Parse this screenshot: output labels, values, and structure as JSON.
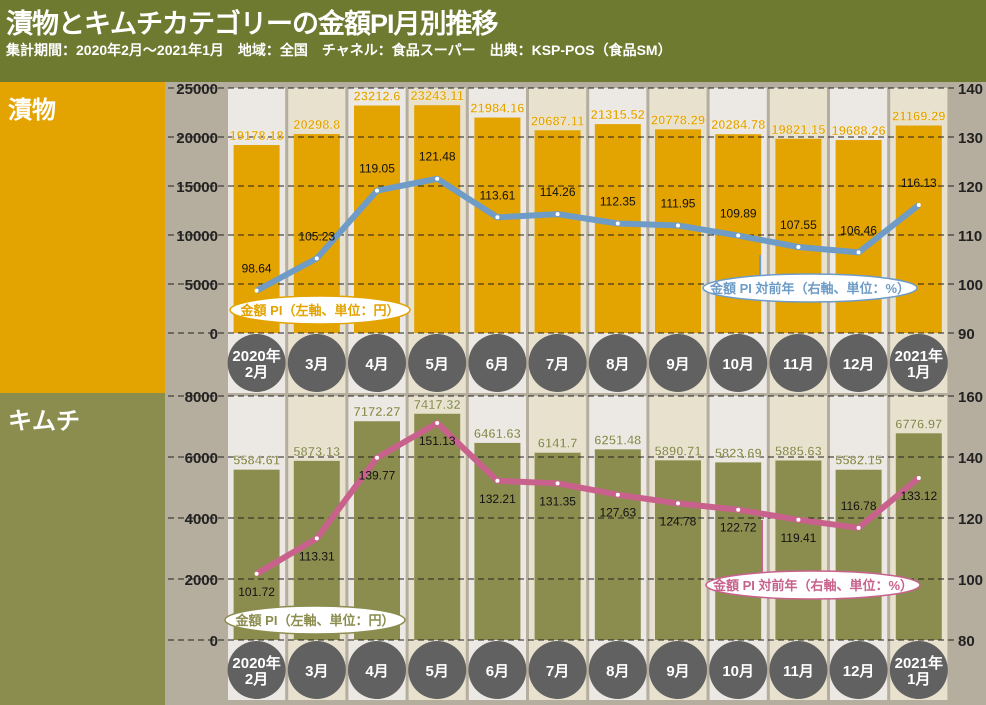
{
  "title": "漬物とキムチカテゴリーの金額PI月別推移",
  "subtitle": "集計期間：2020年2月～2021年1月　地域：全国　チャネル：食品スーパー　出典：KSP-POS（食品SM）",
  "chart_data": [
    {
      "section": "漬物",
      "type": "bar+line",
      "categories": [
        "2020年\n2月",
        "3月",
        "4月",
        "5月",
        "6月",
        "7月",
        "8月",
        "9月",
        "10月",
        "11月",
        "12月",
        "2021年\n1月"
      ],
      "series": [
        {
          "name": "金額 PI（左軸、単位：円）",
          "type": "bar",
          "axis": "left",
          "values": [
            19178.18,
            20298.8,
            23212.6,
            23243.11,
            21984.16,
            20687.11,
            21315.52,
            20778.29,
            20284.78,
            19821.15,
            19688.26,
            21169.29
          ],
          "color": "#e3a300"
        },
        {
          "name": "金額 PI 対前年（右軸、単位：%）",
          "type": "line",
          "axis": "right",
          "values": [
            98.64,
            105.23,
            119.05,
            121.48,
            113.61,
            114.26,
            112.35,
            111.95,
            109.89,
            107.55,
            106.46,
            116.13
          ],
          "color": "#6e9cc6"
        }
      ],
      "left_ylim": [
        0,
        25000
      ],
      "left_ticks": [
        0,
        5000,
        10000,
        15000,
        20000,
        25000
      ],
      "right_ylim": [
        90,
        140
      ],
      "right_ticks": [
        90,
        100,
        110,
        120,
        130,
        140
      ],
      "grid": true
    },
    {
      "section": "キムチ",
      "type": "bar+line",
      "categories": [
        "2020年\n2月",
        "3月",
        "4月",
        "5月",
        "6月",
        "7月",
        "8月",
        "9月",
        "10月",
        "11月",
        "12月",
        "2021年\n1月"
      ],
      "series": [
        {
          "name": "金額 PI（左軸、単位：円）",
          "type": "bar",
          "axis": "left",
          "values": [
            5584.61,
            5873.13,
            7172.27,
            7417.32,
            6461.63,
            6141.7,
            6251.48,
            5890.71,
            5823.69,
            5885.63,
            5582.15,
            6776.97
          ],
          "color": "#8b8d4f"
        },
        {
          "name": "金額 PI 対前年（右軸、単位：%）",
          "type": "line",
          "axis": "right",
          "values": [
            101.72,
            113.31,
            139.77,
            151.13,
            132.21,
            131.35,
            127.63,
            124.78,
            122.72,
            119.41,
            116.78,
            133.12
          ],
          "color": "#c8628c"
        }
      ],
      "left_ylim": [
        0,
        8000
      ],
      "left_ticks": [
        0,
        2000,
        4000,
        6000,
        8000
      ],
      "right_ylim": [
        80,
        160
      ],
      "right_ticks": [
        80,
        100,
        120,
        140,
        160
      ],
      "grid": true
    }
  ]
}
